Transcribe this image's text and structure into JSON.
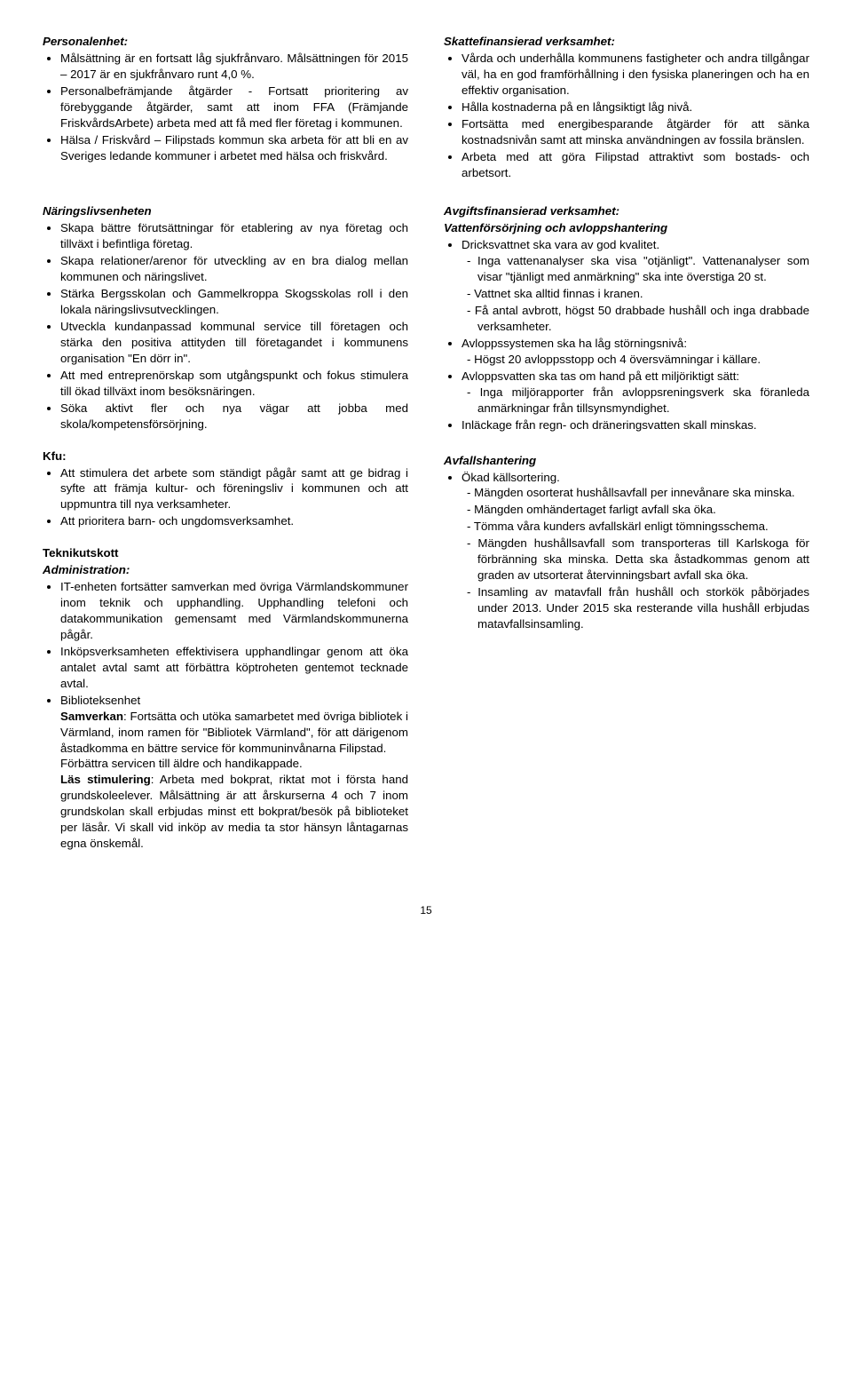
{
  "row1": {
    "left": {
      "heading": "Personalenhet:",
      "items": [
        "Målsättning är en fortsatt låg sjukfrånvaro. Målsättningen för 2015 – 2017 är en sjukfrånvaro runt 4,0 %.",
        "Personalbefrämjande åtgärder - Fortsatt prioritering av förebyggande åtgärder, samt att inom FFA (Främjande FriskvårdsArbete) arbeta med att få med fler företag i kommunen.",
        "Hälsa / Friskvård – Filipstads kommun ska arbeta för att bli en av Sveriges ledande kommuner i arbetet med hälsa och friskvård."
      ]
    },
    "right": {
      "heading": "Skattefinansierad verksamhet:",
      "items": [
        "Vårda och underhålla kommunens fastigheter och andra tillgångar väl, ha en god framförhållning i den fysiska planeringen och ha en effektiv organisation.",
        "Hålla kostnaderna på en långsiktigt låg nivå.",
        "Fortsätta med energibesparande åtgärder för att sänka kostnadsnivån samt att minska användningen av fossila bränslen.",
        "Arbeta med att göra Filipstad attraktivt som bostads- och arbetsort."
      ]
    }
  },
  "row2": {
    "left": {
      "naring": {
        "heading": "Näringslivsenheten",
        "items": [
          "Skapa bättre förutsättningar för etablering av nya företag och tillväxt i befintliga företag.",
          "Skapa relationer/arenor för utveckling av en bra dialog mellan kommunen och näringslivet.",
          "Stärka Bergsskolan och Gammelkroppa Skogsskolas roll i den lokala näringslivsutvecklingen.",
          "Utveckla kundanpassad kommunal service till företagen och stärka den positiva attityden till företagandet i kommunens organisation \"En dörr in\".",
          "Att med entreprenörskap som utgångspunkt och fokus stimulera till ökad tillväxt inom besöksnäringen.",
          "Söka aktivt fler och nya vägar att jobba med skola/kompetensförsörjning."
        ]
      },
      "kfu": {
        "heading": "Kfu:",
        "items": [
          "Att stimulera det arbete som ständigt pågår samt att ge bidrag i syfte att främja kultur- och föreningsliv i kommunen och att uppmuntra till nya verksamheter.",
          "Att prioritera barn- och ungdomsverksamhet."
        ]
      },
      "teknik": {
        "heading1": "Teknikutskott",
        "heading2": "Administration:",
        "items": [
          "IT-enheten fortsätter samverkan med övriga Värmlandskommuner inom teknik och upphandling. Upphandling telefoni och datakommunikation gemensamt med Värmlandskommunerna pågår.",
          "Inköpsverksamheten effektivisera upphandlingar genom att öka antalet avtal samt att förbättra köptroheten gentemot tecknade avtal."
        ],
        "bib_heading": "Biblioteksenhet",
        "bib_samverkan_label": "Samverkan",
        "bib_samverkan_text": ": Fortsätta och utöka samarbetet med övriga bibliotek i Värmland, inom ramen för \"Bibliotek Värmland\", för att därigenom åstadkomma en bättre service för kommuninvånarna Filipstad.",
        "bib_forbattra": "Förbättra servicen till äldre och handikappade.",
        "bib_las_label": "Läs stimulering",
        "bib_las_text": ": Arbeta med bokprat, riktat mot i första hand grundskoleelever. Målsättning är att årskurserna 4 och 7 inom grundskolan skall erbjudas minst ett bokprat/besök på biblioteket per läsår. Vi skall vid inköp av media ta stor hänsyn låntagarnas egna önskemål."
      }
    },
    "right": {
      "avgift": {
        "heading": "Avgiftsfinansierad verksamhet:",
        "sub": "Vattenförsörjning och avloppshantering",
        "items": [
          {
            "text": "Dricksvattnet ska vara av god kvalitet.",
            "sub": [
              "Inga vattenanalyser ska visa \"otjänligt\". Vattenanalyser som visar \"tjänligt med anmärkning\" ska inte överstiga 20 st.",
              "Vattnet ska alltid finnas i kranen.",
              "Få antal avbrott, högst 50 drabbade hushåll och inga drabbade verksamheter."
            ]
          },
          {
            "text": "Avloppssystemen ska ha låg störningsnivå:",
            "sub": [
              "Högst 20 avloppsstopp och 4 översvämningar i källare."
            ]
          },
          {
            "text": "Avloppsvatten ska tas om hand på ett miljöriktigt sätt:",
            "sub": [
              "Inga miljörapporter från avloppsreningsverk ska föranleda anmärkningar från tillsynsmyndighet."
            ]
          },
          {
            "text": "Inläckage från regn- och dräneringsvatten skall minskas."
          }
        ]
      },
      "avfall": {
        "heading": "Avfallshantering",
        "items": [
          {
            "text": "Ökad källsortering.",
            "sub": [
              "Mängden osorterat hushållsavfall per innevånare ska minska.",
              "Mängden omhändertaget farligt avfall ska öka.",
              "Tömma våra kunders avfallskärl enligt tömningsschema.",
              "Mängden hushållsavfall som transporteras till Karlskoga för förbränning ska minska. Detta ska åstadkommas genom att graden av utsorterat återvinningsbart avfall ska öka.",
              "Insamling av matavfall från hushåll och storkök påbörjades under 2013. Under 2015 ska resterande villa hushåll erbjudas matavfallsinsamling."
            ]
          }
        ]
      }
    }
  },
  "pagenum": "15"
}
